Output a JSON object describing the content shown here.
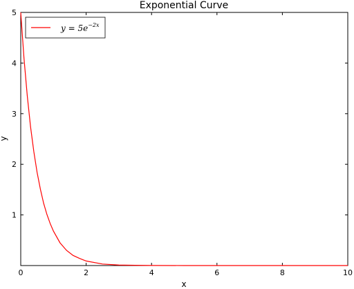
{
  "chart_data": {
    "type": "line",
    "title": "Exponential Curve",
    "xlabel": "x",
    "ylabel": "y",
    "xlim": [
      0,
      10
    ],
    "ylim": [
      0,
      5
    ],
    "xticks": [
      0,
      2,
      4,
      6,
      8,
      10
    ],
    "yticks": [
      1,
      2,
      3,
      4,
      5
    ],
    "grid": false,
    "legend_position": "top-left",
    "series": [
      {
        "name": "y = 5e^{-2x}",
        "legend_main": "y = 5e",
        "legend_sup": "−2x",
        "color": "#ff0000",
        "x": [
          0,
          0.1,
          0.2,
          0.3,
          0.4,
          0.5,
          0.6,
          0.7,
          0.8,
          0.9,
          1.0,
          1.2,
          1.4,
          1.6,
          1.8,
          2.0,
          2.5,
          3.0,
          3.5,
          4.0,
          5.0,
          6.0,
          7.0,
          8.0,
          9.0,
          10.0
        ],
        "y": [
          5.0,
          4.09,
          3.35,
          2.74,
          2.25,
          1.84,
          1.51,
          1.23,
          1.01,
          0.83,
          0.68,
          0.45,
          0.3,
          0.2,
          0.14,
          0.09,
          0.03,
          0.01,
          0.005,
          0.002,
          0.0,
          0.0,
          0.0,
          0.0,
          0.0,
          0.0
        ]
      }
    ]
  }
}
